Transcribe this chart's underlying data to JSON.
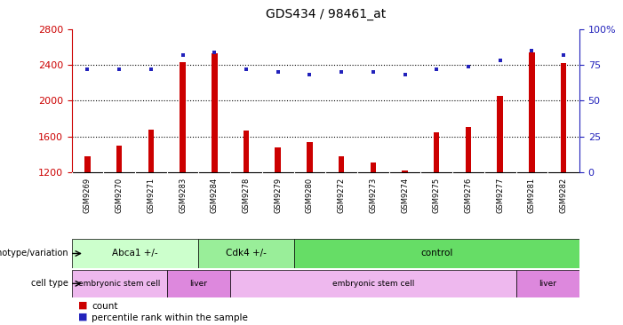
{
  "title": "GDS434 / 98461_at",
  "samples": [
    "GSM9269",
    "GSM9270",
    "GSM9271",
    "GSM9283",
    "GSM9284",
    "GSM9278",
    "GSM9279",
    "GSM9280",
    "GSM9272",
    "GSM9273",
    "GSM9274",
    "GSM9275",
    "GSM9276",
    "GSM9277",
    "GSM9281",
    "GSM9282"
  ],
  "counts": [
    1380,
    1500,
    1680,
    2430,
    2530,
    1670,
    1480,
    1540,
    1380,
    1310,
    1220,
    1650,
    1710,
    2050,
    2540,
    2420
  ],
  "percentiles": [
    72,
    72,
    72,
    82,
    84,
    72,
    70,
    68,
    70,
    70,
    68,
    72,
    74,
    78,
    85,
    82
  ],
  "ylim_left": [
    1200,
    2800
  ],
  "ylim_right": [
    0,
    100
  ],
  "yticks_left": [
    1200,
    1600,
    2000,
    2400,
    2800
  ],
  "yticks_right": [
    0,
    25,
    50,
    75,
    100
  ],
  "ytick_labels_right": [
    "0",
    "25",
    "50",
    "75",
    "100%"
  ],
  "bar_color": "#CC0000",
  "dot_color": "#2222BB",
  "left_axis_color": "#CC0000",
  "right_axis_color": "#2222BB",
  "sample_bg_color": "#C8C8C8",
  "genotype_groups": [
    {
      "label": "Abca1 +/-",
      "start": 0,
      "end": 4,
      "color": "#CCFFCC"
    },
    {
      "label": "Cdk4 +/-",
      "start": 4,
      "end": 7,
      "color": "#99EE99"
    },
    {
      "label": "control",
      "start": 7,
      "end": 16,
      "color": "#66DD66"
    }
  ],
  "celltype_groups": [
    {
      "label": "embryonic stem cell",
      "start": 0,
      "end": 3,
      "color": "#EEB8EE"
    },
    {
      "label": "liver",
      "start": 3,
      "end": 5,
      "color": "#DD88DD"
    },
    {
      "label": "embryonic stem cell",
      "start": 5,
      "end": 14,
      "color": "#EEB8EE"
    },
    {
      "label": "liver",
      "start": 14,
      "end": 16,
      "color": "#DD88DD"
    }
  ],
  "grid_dotted_at": [
    1600,
    2000,
    2400
  ],
  "geno_label": "genotype/variation",
  "cell_label": "cell type",
  "legend_count": "count",
  "legend_pct": "percentile rank within the sample"
}
